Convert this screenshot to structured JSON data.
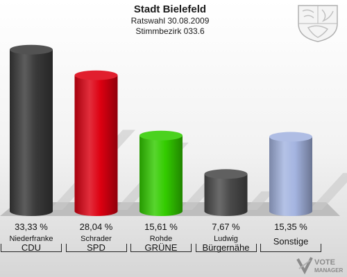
{
  "header": {
    "title": "Stadt Bielefeld",
    "subtitle1": "Ratswahl 30.08.2009",
    "subtitle2": "Stimmbezirk 033.6"
  },
  "logo": {
    "line1": "VOTE",
    "line2": "MANAGER"
  },
  "chart_data": {
    "type": "bar",
    "categories": [
      "CDU",
      "SPD",
      "GRÜNE",
      "Bürgernähe",
      "Sonstige"
    ],
    "candidates": [
      "Niederfranke",
      "Schrader",
      "Rohde",
      "Ludwig",
      ""
    ],
    "values": [
      33.33,
      28.04,
      15.61,
      7.67,
      15.35
    ],
    "value_labels": [
      "33,33 %",
      "28,04 %",
      "15,61 %",
      "7,67 %",
      "15,35 %"
    ],
    "colors": [
      "#3a3a3a",
      "#dd0011",
      "#33cc00",
      "#4a4a4a",
      "#a4b4e0"
    ],
    "ylim": [
      0,
      35
    ],
    "grid": false
  }
}
